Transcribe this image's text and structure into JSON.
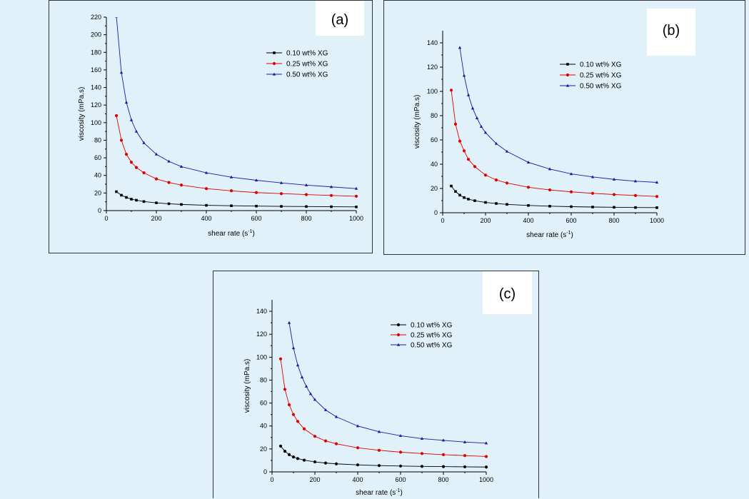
{
  "colors": {
    "background": "#e0f1f9",
    "series": [
      "#000000",
      "#e00000",
      "#1a1aa8"
    ]
  },
  "panels": [
    {
      "id": "a",
      "label": "(a)"
    },
    {
      "id": "b",
      "label": "(b)"
    },
    {
      "id": "c",
      "label": "(c)"
    }
  ],
  "chart_data": [
    {
      "type": "line",
      "title": "(a)",
      "xlabel": "shear rate (s",
      "xlabel_sup": "-1",
      "xlabel_close": ")",
      "ylabel": "viscosity (mPa.s)",
      "xlim": [
        0,
        1000
      ],
      "ylim": [
        0,
        220
      ],
      "xticks": [
        0,
        200,
        400,
        600,
        800,
        1000
      ],
      "yticks": [
        0,
        20,
        40,
        60,
        80,
        100,
        120,
        140,
        160,
        180,
        200,
        220
      ],
      "legend_position": "top-right",
      "series": [
        {
          "name": "0.10 wt% XG",
          "marker": "square",
          "x": [
            40,
            60,
            80,
            100,
            120,
            150,
            200,
            250,
            300,
            400,
            500,
            600,
            700,
            800,
            900,
            1000
          ],
          "values": [
            21.5,
            17.5,
            15,
            13,
            11.8,
            10.3,
            8.8,
            7.8,
            7.0,
            6.0,
            5.5,
            5.1,
            4.8,
            4.6,
            4.4,
            4.2
          ]
        },
        {
          "name": "0.25 wt% XG",
          "marker": "circle",
          "x": [
            40,
            60,
            80,
            100,
            120,
            150,
            200,
            250,
            300,
            400,
            500,
            600,
            700,
            800,
            900,
            1000
          ],
          "values": [
            108,
            80,
            64,
            55,
            49,
            43,
            36,
            32,
            29,
            25,
            22.5,
            20.5,
            19.3,
            18.2,
            17.2,
            16.3
          ]
        },
        {
          "name": "0.50 wt% XG",
          "marker": "triangle",
          "x": [
            40,
            60,
            80,
            100,
            120,
            150,
            200,
            250,
            300,
            400,
            500,
            600,
            700,
            800,
            900,
            1000
          ],
          "values": [
            221,
            157,
            123,
            103,
            90,
            77,
            64,
            56,
            50,
            43,
            38,
            34.5,
            31.5,
            29,
            27,
            25
          ]
        }
      ]
    },
    {
      "type": "line",
      "title": "(b)",
      "xlabel": "shear rate (s",
      "xlabel_sup": "-1",
      "xlabel_close": ")",
      "ylabel": "viscosity (mPa.s)",
      "xlim": [
        0,
        1000
      ],
      "ylim": [
        0,
        150
      ],
      "xticks": [
        0,
        200,
        400,
        600,
        800,
        1000
      ],
      "yticks": [
        0,
        20,
        40,
        60,
        80,
        100,
        120,
        140
      ],
      "legend_position": "top-right",
      "series": [
        {
          "name": "0.10 wt% XG",
          "marker": "square",
          "x": [
            40,
            60,
            80,
            100,
            120,
            150,
            200,
            250,
            300,
            400,
            500,
            600,
            700,
            800,
            900,
            1000
          ],
          "values": [
            22,
            17.5,
            14.5,
            12.5,
            11.2,
            9.9,
            8.5,
            7.6,
            6.9,
            6.0,
            5.4,
            5.0,
            4.7,
            4.5,
            4.3,
            4.2
          ]
        },
        {
          "name": "0.25 wt% XG",
          "marker": "circle",
          "x": [
            40,
            60,
            80,
            100,
            120,
            150,
            200,
            250,
            300,
            400,
            500,
            600,
            700,
            800,
            900,
            1000
          ],
          "values": [
            101,
            73,
            59,
            51,
            44,
            38,
            31,
            27,
            24.5,
            21,
            18.8,
            17.2,
            16,
            15,
            14.2,
            13.4
          ]
        },
        {
          "name": "0.50 wt% XG",
          "marker": "triangle",
          "x": [
            80,
            100,
            120,
            140,
            160,
            180,
            200,
            250,
            300,
            400,
            500,
            600,
            700,
            800,
            900,
            1000
          ],
          "values": [
            136,
            113,
            97,
            86,
            78,
            71,
            66,
            57,
            50.5,
            41.5,
            36,
            32,
            29.5,
            27.5,
            26,
            25
          ]
        }
      ]
    },
    {
      "type": "line",
      "title": "(c)",
      "xlabel": "shear rate (s",
      "xlabel_sup": "-1",
      "xlabel_close": ")",
      "ylabel": "viscosity (mPa.s)",
      "xlim": [
        0,
        1000
      ],
      "ylim": [
        0,
        150
      ],
      "xticks": [
        0,
        200,
        400,
        600,
        800,
        1000
      ],
      "yticks": [
        0,
        20,
        40,
        60,
        80,
        100,
        120,
        140
      ],
      "legend_position": "top-right",
      "series": [
        {
          "name": "0.10 wt% XG",
          "marker": "circle",
          "x": [
            40,
            60,
            80,
            100,
            120,
            150,
            200,
            250,
            300,
            400,
            500,
            600,
            700,
            800,
            900,
            1000
          ],
          "values": [
            22.5,
            18,
            15,
            13,
            11.6,
            10.2,
            8.7,
            7.7,
            7.0,
            6.1,
            5.5,
            5.1,
            4.8,
            4.6,
            4.4,
            4.2
          ]
        },
        {
          "name": "0.25 wt% XG",
          "marker": "circle",
          "x": [
            40,
            60,
            80,
            100,
            120,
            150,
            200,
            250,
            300,
            400,
            500,
            600,
            700,
            800,
            900,
            1000
          ],
          "values": [
            98.5,
            72,
            58.5,
            50,
            44,
            37.5,
            31,
            27,
            24.5,
            21,
            18.8,
            17.2,
            16,
            15,
            14.2,
            13.4
          ]
        },
        {
          "name": "0.50 wt% XG",
          "marker": "triangle",
          "x": [
            80,
            100,
            120,
            140,
            160,
            180,
            200,
            250,
            300,
            400,
            500,
            600,
            700,
            800,
            900,
            1000
          ],
          "values": [
            130,
            108,
            93,
            82.5,
            74.5,
            68,
            63,
            54,
            48,
            40,
            35,
            31.5,
            29,
            27.5,
            26,
            25
          ]
        }
      ]
    }
  ]
}
